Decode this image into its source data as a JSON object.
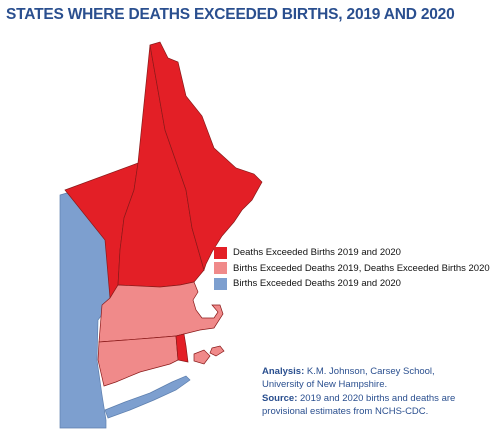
{
  "title": "STATES WHERE DEATHS EXCEEDED BIRTHS, 2019 AND 2020",
  "legend": [
    {
      "label": "Deaths Exceeded Births 2019 and 2020",
      "color": "#e31f26"
    },
    {
      "label": "Births Exceeded Deaths 2019, Deaths Exceeded Births 2020",
      "color": "#f08a8a"
    },
    {
      "label": "Births Exceeded Deaths 2019 and 2020",
      "color": "#7d9fcf"
    }
  ],
  "colors": {
    "background": "#ffffff",
    "title": "#2a4f8f",
    "outside_land": "#7d9fcf",
    "border": "#8a1a1a"
  },
  "states": [
    {
      "name": "Maine",
      "category": 0
    },
    {
      "name": "New Hampshire",
      "category": 0
    },
    {
      "name": "Vermont",
      "category": 0
    },
    {
      "name": "Massachusetts",
      "category": 1
    },
    {
      "name": "Connecticut",
      "category": 1
    },
    {
      "name": "Rhode Island",
      "category": 0
    },
    {
      "name": "New York",
      "category": 2
    }
  ],
  "credits": {
    "analysis_label": "Analysis:",
    "analysis_text": "K.M. Johnson, Carsey School, University of New Hampshire.",
    "source_label": "Source:",
    "source_text": "2019 and 2020 births and deaths are provisional estimates from NCHS-CDC."
  }
}
